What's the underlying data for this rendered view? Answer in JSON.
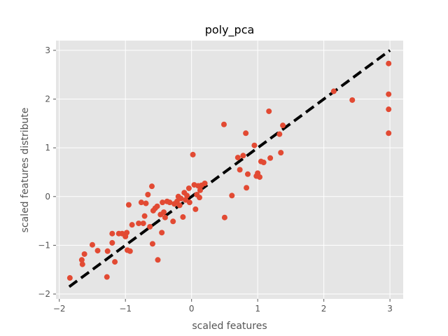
{
  "chart_data": {
    "type": "scatter",
    "title": "poly_pca",
    "xlabel": "scaled features",
    "ylabel": "scaled features distribute",
    "xlim": [
      -2.05,
      3.2
    ],
    "ylim": [
      -2.1,
      3.2
    ],
    "x_ticks": [
      -2,
      -1,
      0,
      1,
      2,
      3
    ],
    "y_ticks": [
      -2,
      -1,
      0,
      1,
      2,
      3
    ],
    "x_tick_labels": [
      "−2",
      "−1",
      "0",
      "1",
      "2",
      "3"
    ],
    "y_tick_labels": [
      "−2",
      "−1",
      "0",
      "1",
      "2",
      "3"
    ],
    "grid": true,
    "style": "ggplot",
    "colors": {
      "background": "#e5e5e5",
      "grid": "#ffffff",
      "points": "#e24a33",
      "reference_line": "#000000"
    },
    "reference_line": {
      "style": "dashed",
      "from": [
        -1.85,
        -1.85
      ],
      "to": [
        3.0,
        3.0
      ]
    },
    "points": [
      {
        "x": -1.84,
        "y": -1.67
      },
      {
        "x": -1.66,
        "y": -1.3
      },
      {
        "x": -1.65,
        "y": -1.39
      },
      {
        "x": -1.62,
        "y": -1.18
      },
      {
        "x": -1.5,
        "y": -0.99
      },
      {
        "x": -1.42,
        "y": -1.11
      },
      {
        "x": -1.28,
        "y": -1.65
      },
      {
        "x": -1.27,
        "y": -1.12
      },
      {
        "x": -1.2,
        "y": -0.95
      },
      {
        "x": -1.2,
        "y": -0.76
      },
      {
        "x": -1.16,
        "y": -1.34
      },
      {
        "x": -1.1,
        "y": -0.76
      },
      {
        "x": -1.05,
        "y": -0.76
      },
      {
        "x": -1.0,
        "y": -0.82
      },
      {
        "x": -0.98,
        "y": -0.74
      },
      {
        "x": -0.97,
        "y": -1.1
      },
      {
        "x": -0.95,
        "y": -0.17
      },
      {
        "x": -0.93,
        "y": -1.12
      },
      {
        "x": -0.9,
        "y": -0.58
      },
      {
        "x": -0.8,
        "y": -0.55
      },
      {
        "x": -0.76,
        "y": -0.12
      },
      {
        "x": -0.73,
        "y": -0.55
      },
      {
        "x": -0.71,
        "y": -0.4
      },
      {
        "x": -0.69,
        "y": -0.14
      },
      {
        "x": -0.66,
        "y": 0.04
      },
      {
        "x": -0.63,
        "y": -0.62
      },
      {
        "x": -0.6,
        "y": 0.21
      },
      {
        "x": -0.59,
        "y": -0.97
      },
      {
        "x": -0.58,
        "y": -0.29
      },
      {
        "x": -0.55,
        "y": -0.24
      },
      {
        "x": -0.52,
        "y": -0.2
      },
      {
        "x": -0.51,
        "y": -1.3
      },
      {
        "x": -0.47,
        "y": -0.37
      },
      {
        "x": -0.45,
        "y": -0.74
      },
      {
        "x": -0.44,
        "y": -0.12
      },
      {
        "x": -0.42,
        "y": -0.32
      },
      {
        "x": -0.4,
        "y": -0.43
      },
      {
        "x": -0.37,
        "y": -0.1
      },
      {
        "x": -0.33,
        "y": -0.12
      },
      {
        "x": -0.28,
        "y": -0.51
      },
      {
        "x": -0.26,
        "y": -0.15
      },
      {
        "x": -0.22,
        "y": -0.1
      },
      {
        "x": -0.2,
        "y": 0.0
      },
      {
        "x": -0.18,
        "y": -0.18
      },
      {
        "x": -0.16,
        "y": -0.04
      },
      {
        "x": -0.13,
        "y": -0.42
      },
      {
        "x": -0.11,
        "y": 0.08
      },
      {
        "x": -0.09,
        "y": -0.07
      },
      {
        "x": -0.07,
        "y": 0.02
      },
      {
        "x": -0.04,
        "y": 0.17
      },
      {
        "x": -0.03,
        "y": -0.12
      },
      {
        "x": 0.02,
        "y": 0.86
      },
      {
        "x": 0.04,
        "y": 0.24
      },
      {
        "x": 0.06,
        "y": -0.26
      },
      {
        "x": 0.08,
        "y": 0.04
      },
      {
        "x": 0.1,
        "y": 0.22
      },
      {
        "x": 0.12,
        "y": -0.02
      },
      {
        "x": 0.13,
        "y": 0.13
      },
      {
        "x": 0.15,
        "y": 0.23
      },
      {
        "x": 0.2,
        "y": 0.27
      },
      {
        "x": 0.49,
        "y": 1.48
      },
      {
        "x": 0.5,
        "y": -0.43
      },
      {
        "x": 0.61,
        "y": 0.02
      },
      {
        "x": 0.7,
        "y": 0.8
      },
      {
        "x": 0.73,
        "y": 0.55
      },
      {
        "x": 0.78,
        "y": 0.84
      },
      {
        "x": 0.82,
        "y": 1.3
      },
      {
        "x": 0.83,
        "y": 0.18
      },
      {
        "x": 0.85,
        "y": 0.46
      },
      {
        "x": 0.95,
        "y": 1.05
      },
      {
        "x": 0.98,
        "y": 0.42
      },
      {
        "x": 1.0,
        "y": 0.48
      },
      {
        "x": 1.03,
        "y": 0.4
      },
      {
        "x": 1.05,
        "y": 0.72
      },
      {
        "x": 1.09,
        "y": 0.7
      },
      {
        "x": 1.17,
        "y": 1.75
      },
      {
        "x": 1.19,
        "y": 0.79
      },
      {
        "x": 1.33,
        "y": 1.28
      },
      {
        "x": 1.35,
        "y": 0.9
      },
      {
        "x": 1.38,
        "y": 1.46
      },
      {
        "x": 2.15,
        "y": 2.16
      },
      {
        "x": 2.43,
        "y": 1.98
      },
      {
        "x": 2.98,
        "y": 2.73
      },
      {
        "x": 2.98,
        "y": 2.1
      },
      {
        "x": 2.98,
        "y": 1.79
      },
      {
        "x": 2.98,
        "y": 1.3
      }
    ]
  }
}
